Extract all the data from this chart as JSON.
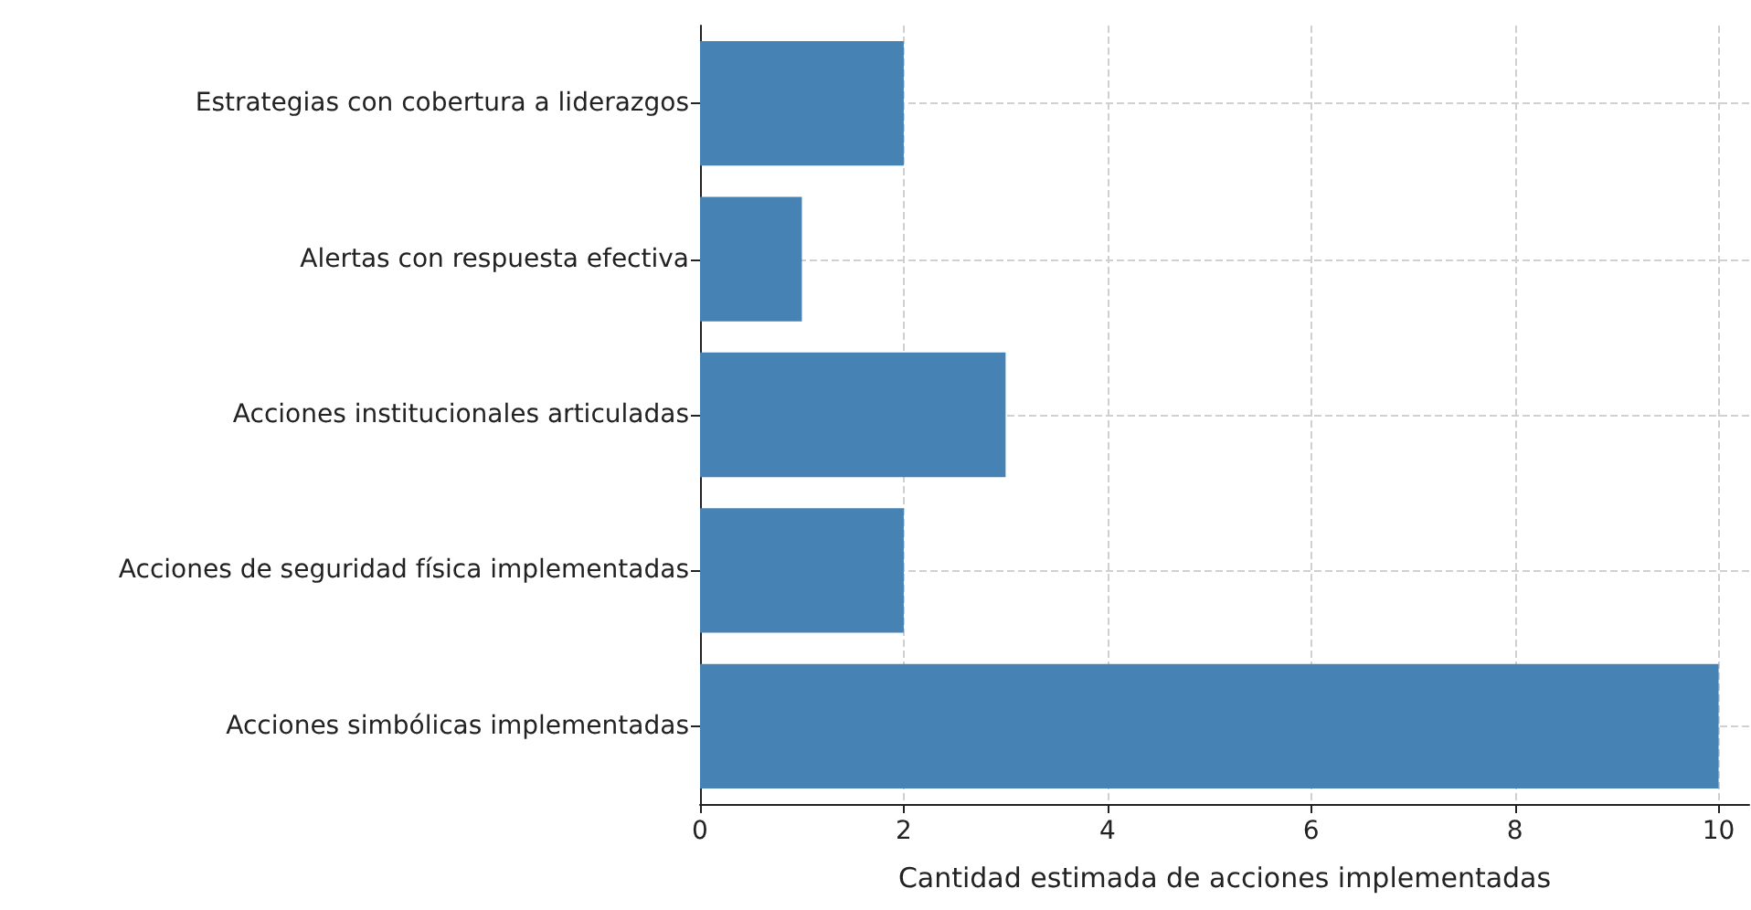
{
  "chart_data": {
    "type": "bar",
    "orientation": "horizontal",
    "xlabel": "Cantidad estimada de acciones implementadas",
    "categories": [
      "Estrategias con cobertura a liderazgos",
      "Alertas con respuesta efectiva",
      "Acciones institucionales articuladas",
      "Acciones de seguridad física implementadas",
      "Acciones simbólicas implementadas"
    ],
    "values": [
      2,
      1,
      3,
      2,
      10
    ],
    "color": "#4682b4",
    "xlim": [
      0,
      10.3
    ],
    "xticks": [
      0,
      2,
      4,
      6,
      8,
      10
    ],
    "grid": true
  }
}
